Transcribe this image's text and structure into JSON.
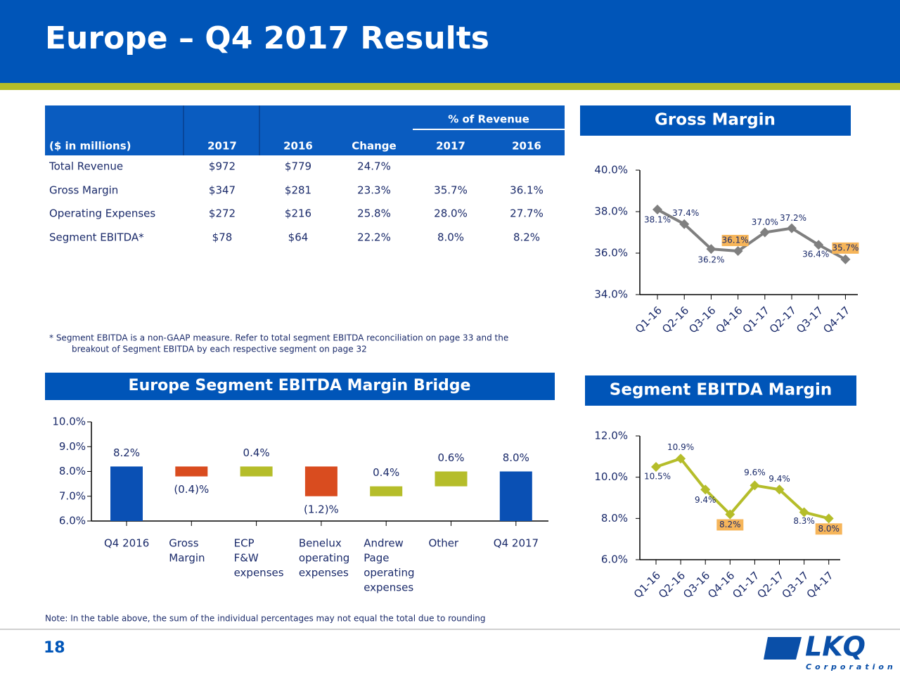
{
  "title": "Europe – Q4 2017 Results",
  "table": {
    "group_header": "% of Revenue",
    "columns": [
      "($ in millions)",
      "2017",
      "2016",
      "Change",
      "2017",
      "2016"
    ],
    "rows": [
      [
        "Total Revenue",
        "$972",
        "$779",
        "24.7%"
      ],
      [
        "Gross Margin",
        "$347",
        "$281",
        "23.3%",
        "35.7%",
        "36.1%"
      ],
      [
        "Operating Expenses",
        "$272",
        "$216",
        "25.8%",
        "28.0%",
        "27.7%"
      ],
      [
        "Segment EBITDA*",
        "$78",
        "$64",
        "22.2%",
        "8.0%",
        "8.2%"
      ]
    ]
  },
  "footnote": [
    "* Segment EBITDA is a non-GAAP measure. Refer to total segment EBITDA reconciliation on page 33 and the",
    "breakout of Segment EBITDA by each respective segment on page 32"
  ],
  "note": "Note: In the table above, the sum of the individual percentages may not equal the total due to rounding",
  "page_number": "18",
  "logo": {
    "text": "LKQ",
    "subtitle": "Corporation"
  },
  "chart_data": [
    {
      "type": "line",
      "title": "Gross Margin",
      "color": "#7f7f7f",
      "highlight_color": "#f6b55a",
      "categories": [
        "Q1-16",
        "Q2-16",
        "Q3-16",
        "Q4-16",
        "Q1-17",
        "Q2-17",
        "Q3-17",
        "Q4-17"
      ],
      "values": [
        38.1,
        37.4,
        36.2,
        36.1,
        37.0,
        37.2,
        36.4,
        35.7
      ],
      "value_labels": [
        "38.1%",
        "37.4%",
        "36.2%",
        "36.1%",
        "37.0%",
        "37.2%",
        "36.4%",
        "35.7%"
      ],
      "highlight": [
        3,
        7
      ],
      "ylim": [
        34,
        40
      ],
      "yticks": [
        {
          "value": 34,
          "label": "34.0%"
        },
        {
          "value": 36,
          "label": "36.0%"
        },
        {
          "value": 38,
          "label": "38.0%"
        },
        {
          "value": 40,
          "label": "40.0%"
        }
      ]
    },
    {
      "type": "line",
      "title": "Segment EBITDA Margin",
      "color": "#b5bd2a",
      "highlight_color": "#f6b55a",
      "categories": [
        "Q1-16",
        "Q2-16",
        "Q3-16",
        "Q4-16",
        "Q1-17",
        "Q2-17",
        "Q3-17",
        "Q4-17"
      ],
      "values": [
        10.5,
        10.9,
        9.4,
        8.2,
        9.6,
        9.4,
        8.3,
        8.0
      ],
      "value_labels": [
        "10.5%",
        "10.9%",
        "9.4%",
        "8.2%",
        "9.6%",
        "9.4%",
        "8.3%",
        "8.0%"
      ],
      "highlight": [
        3,
        7
      ],
      "ylim": [
        6,
        12
      ],
      "yticks": [
        {
          "value": 6,
          "label": "6.0%"
        },
        {
          "value": 8,
          "label": "8.0%"
        },
        {
          "value": 10,
          "label": "10.0%"
        },
        {
          "value": 12,
          "label": "12.0%"
        }
      ]
    },
    {
      "type": "waterfall",
      "title": "Europe Segment EBITDA Margin Bridge",
      "categories": [
        [
          "Q4 2016"
        ],
        [
          "Gross",
          "Margin"
        ],
        [
          "ECP",
          "F&W",
          "expenses"
        ],
        [
          "Benelux",
          "operating",
          "expenses"
        ],
        [
          "Andrew",
          "Page",
          "operating",
          "expenses"
        ],
        [
          "Other"
        ],
        [
          "Q4 2017"
        ]
      ],
      "values": [
        8.2,
        -0.4,
        0.4,
        -1.2,
        0.4,
        0.6,
        8.0
      ],
      "value_labels": [
        "8.2%",
        "(0.4)%",
        "0.4%",
        "(1.2)%",
        "0.4%",
        "0.6%",
        "8.0%"
      ],
      "measure": [
        "absolute",
        "relative",
        "relative",
        "relative",
        "relative",
        "relative",
        "total"
      ],
      "colors": [
        "#0a50b4",
        "#d94c1f",
        "#b5bd2a",
        "#d94c1f",
        "#b5bd2a",
        "#b5bd2a",
        "#0a50b4"
      ],
      "ylim": [
        6,
        10
      ],
      "yticks": [
        {
          "value": 6,
          "label": "6.0%"
        },
        {
          "value": 7,
          "label": "7.0%"
        },
        {
          "value": 8,
          "label": "8.0%"
        },
        {
          "value": 9,
          "label": "9.0%"
        },
        {
          "value": 10,
          "label": "10.0%"
        }
      ]
    }
  ]
}
